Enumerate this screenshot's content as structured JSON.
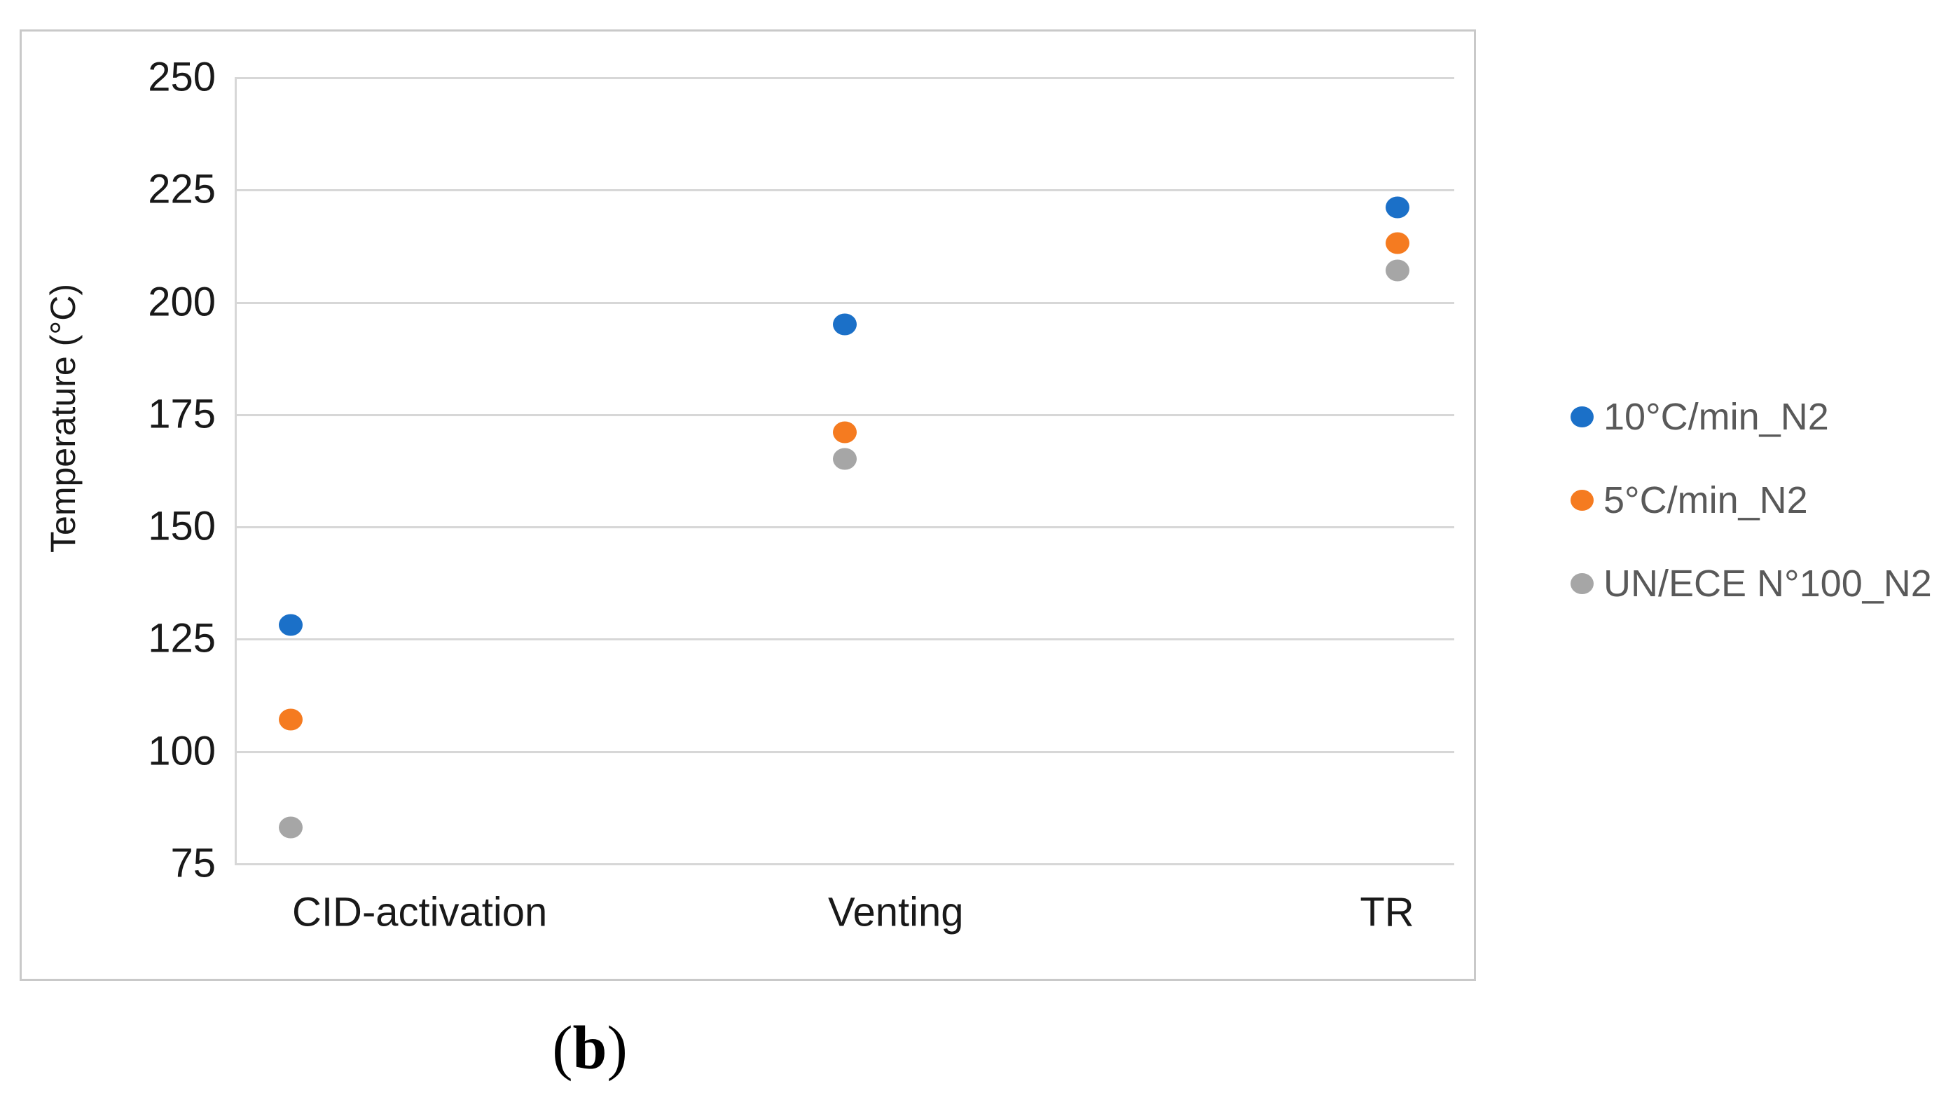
{
  "figure": {
    "caption": {
      "open": "(",
      "letter": "b",
      "close": ")"
    }
  },
  "chart_data": {
    "type": "scatter",
    "title": "",
    "xlabel": "",
    "ylabel": "Temperature (°C)",
    "categories": [
      "CID-activation",
      "Venting",
      "TR"
    ],
    "series": [
      {
        "name": "10°C/min_N2",
        "color": "#1b70c8",
        "values": [
          128,
          195,
          221
        ]
      },
      {
        "name": "5°C/min_N2",
        "color": "#f57b20",
        "values": [
          107,
          171,
          213
        ]
      },
      {
        "name": "UN/ECE N°100_N2",
        "color": "#a6a6a6",
        "values": [
          83,
          165,
          207
        ]
      }
    ],
    "ylim": [
      75,
      250
    ],
    "yticks": [
      75,
      100,
      125,
      150,
      175,
      200,
      225,
      250
    ],
    "grid": "horizontal",
    "legend_position": "right",
    "layout": {
      "point_x_pct": [
        4.43,
        49.94,
        95.34
      ],
      "label_x_pct": [
        15.2,
        54.3,
        94.65
      ]
    }
  }
}
